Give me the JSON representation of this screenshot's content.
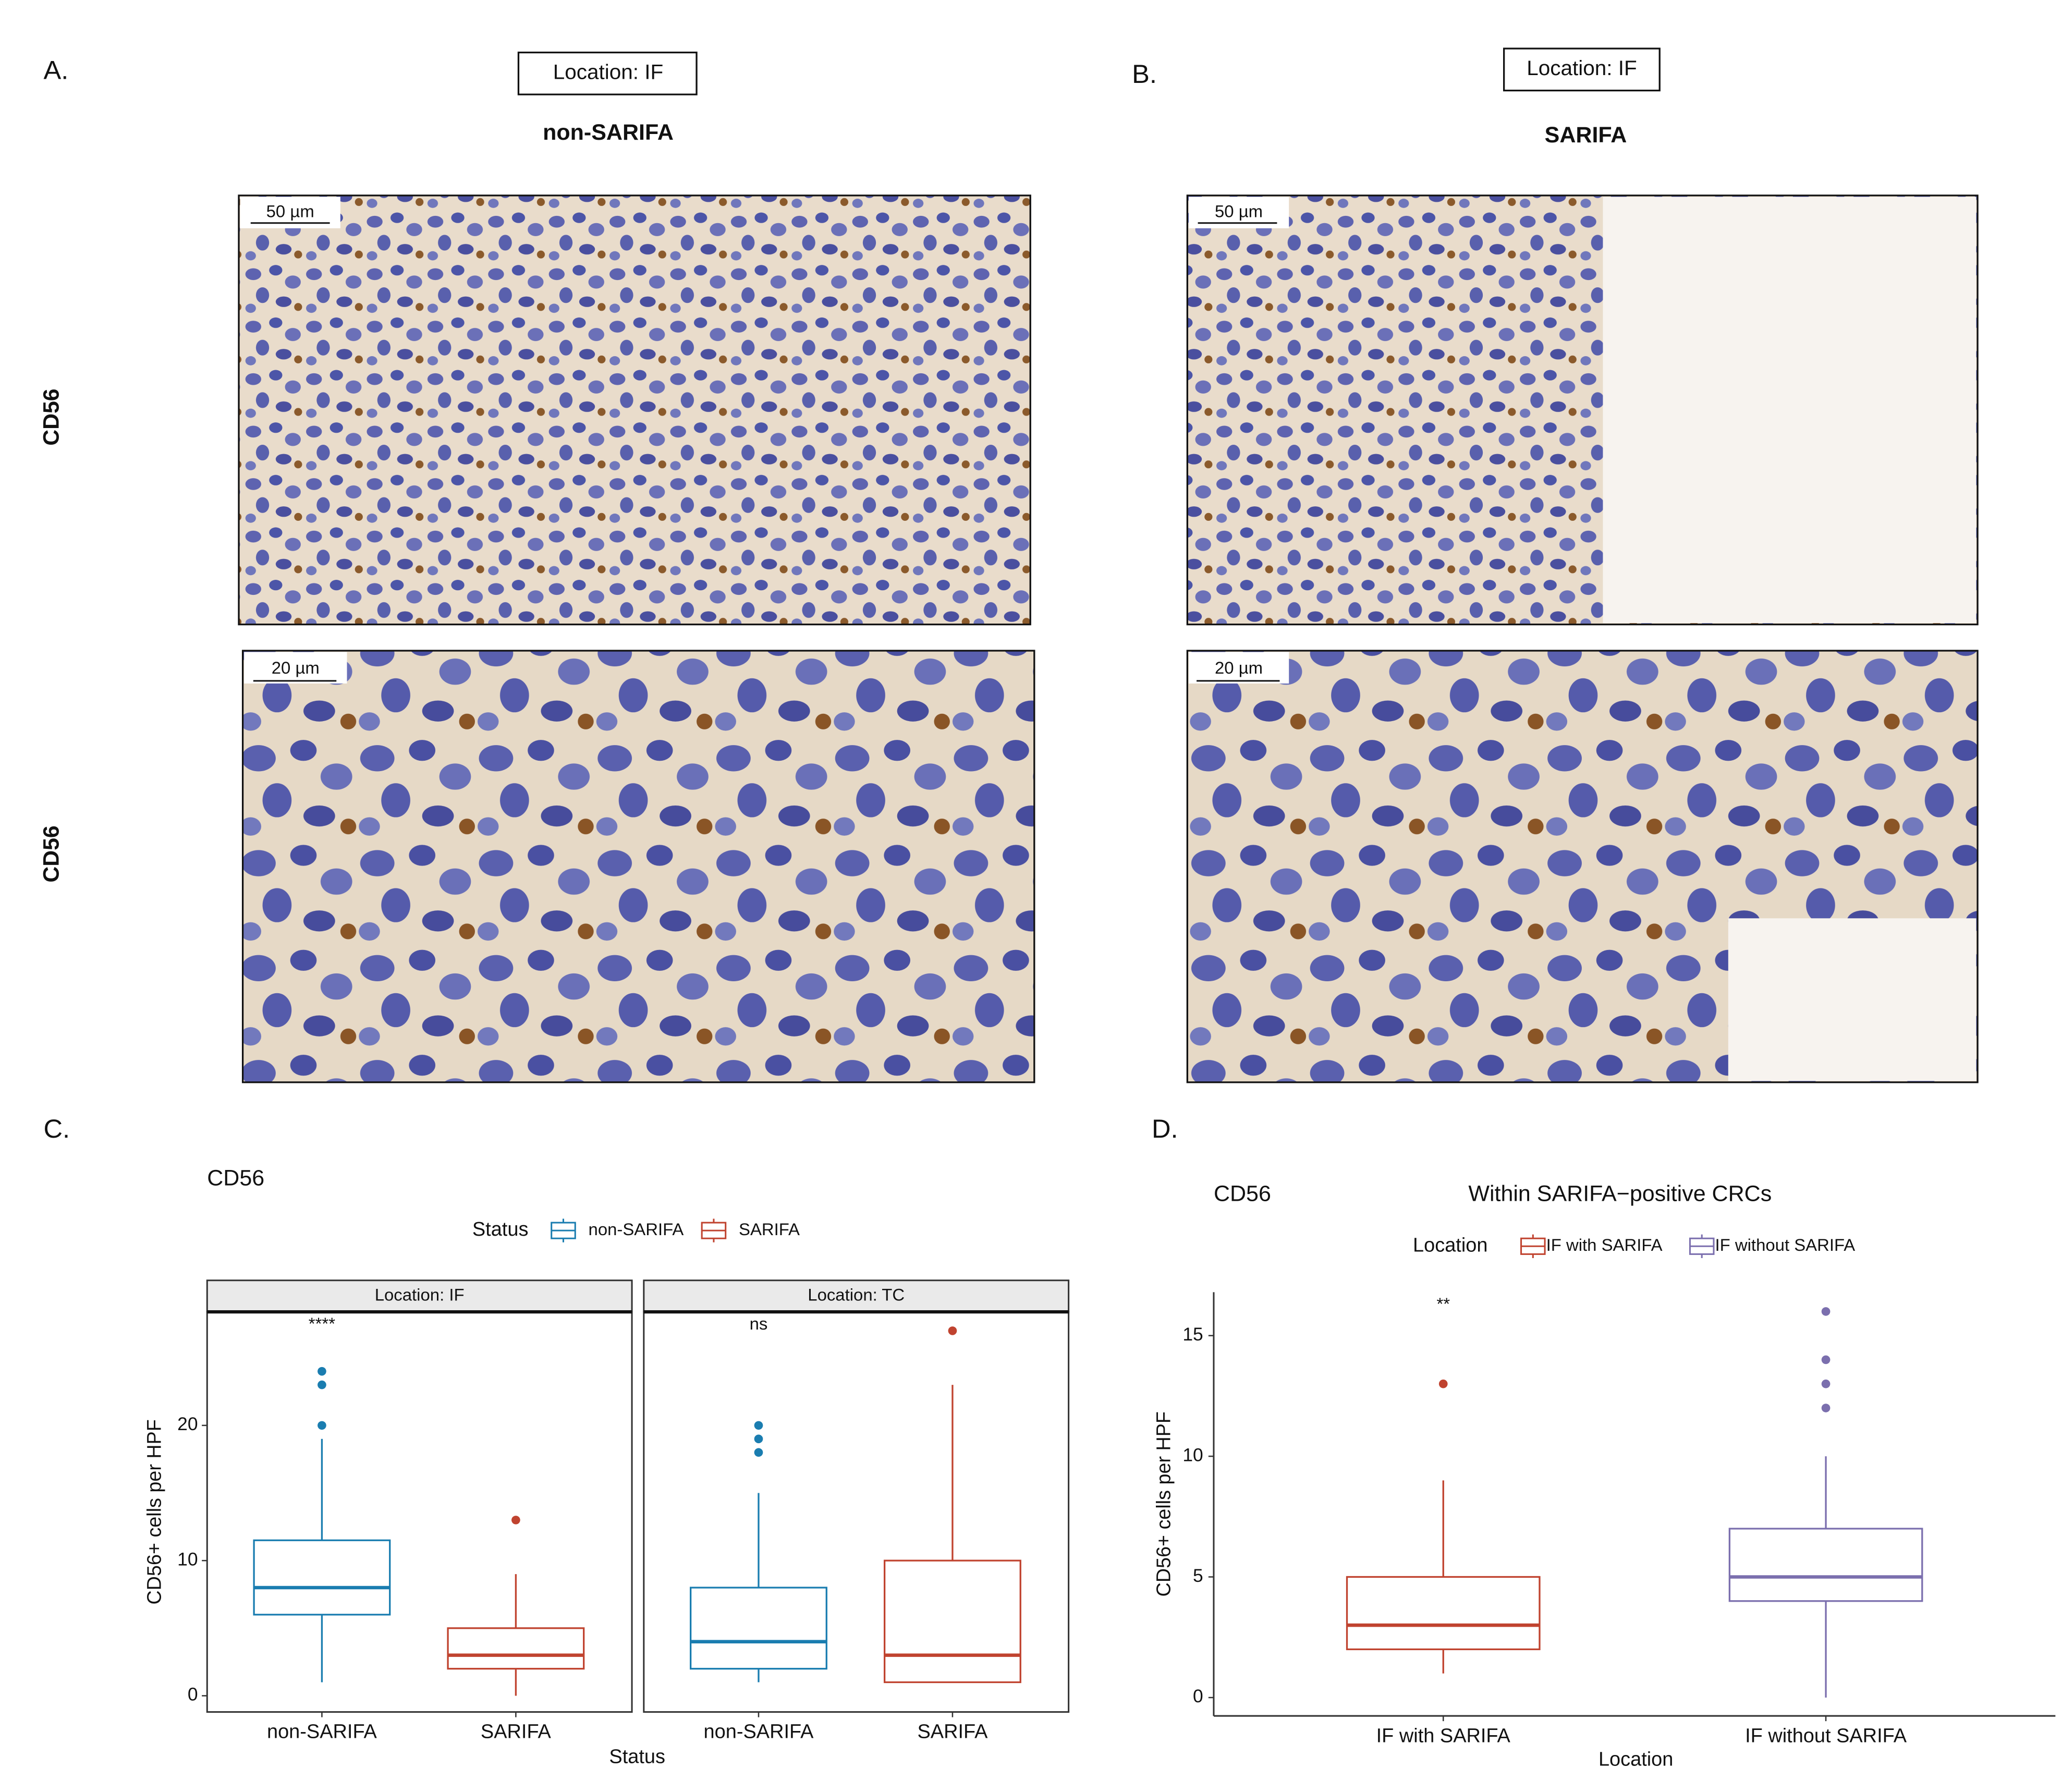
{
  "panels": {
    "a": {
      "label": "A.",
      "location": "Location: IF",
      "title": "non-SARIFA",
      "row_labels": [
        "CD56",
        "CD56"
      ],
      "scale_bars": [
        "50 µm",
        "20 µm"
      ]
    },
    "b": {
      "label": "B.",
      "location": "Location: IF",
      "title": "SARIFA",
      "scale_bars": [
        "50 µm",
        "20 µm"
      ]
    },
    "c": {
      "label": "C."
    },
    "d": {
      "label": "D."
    }
  },
  "chart_data": [
    {
      "type": "box",
      "title": "CD56",
      "legend_title": "Status",
      "x_label": "Status",
      "y_label": "CD56+ cells per HPF",
      "ylim": [
        -1.2,
        28.4
      ],
      "yticks": [
        0,
        10,
        20
      ],
      "series": [
        {
          "name": "non-SARIFA",
          "color": "#1a7db0"
        },
        {
          "name": "SARIFA",
          "color": "#c0432f"
        }
      ],
      "facets": [
        {
          "label": "Location: IF",
          "significance": "****",
          "categories": [
            "non-SARIFA",
            "SARIFA"
          ],
          "boxes": [
            {
              "min": 1,
              "q1": 6,
              "median": 8,
              "q3": 11.5,
              "max": 19,
              "outliers": [
                20,
                23,
                24
              ]
            },
            {
              "min": 0,
              "q1": 2,
              "median": 3,
              "q3": 5,
              "max": 9,
              "outliers": [
                13
              ]
            }
          ]
        },
        {
          "label": "Location: TC",
          "significance": "ns",
          "categories": [
            "non-SARIFA",
            "SARIFA"
          ],
          "boxes": [
            {
              "min": 1,
              "q1": 2,
              "median": 4,
              "q3": 8,
              "max": 15,
              "outliers": [
                18,
                19,
                20
              ]
            },
            {
              "min": 1,
              "q1": 1,
              "median": 3,
              "q3": 10,
              "max": 23,
              "outliers": [
                27
              ]
            }
          ]
        }
      ]
    },
    {
      "type": "box",
      "title": "CD56",
      "subtitle": "Within SARIFA−positive CRCs",
      "legend_title": "Location",
      "x_label": "Location",
      "y_label": "CD56+ cells per HPF",
      "ylim": [
        -0.76,
        16.8
      ],
      "yticks": [
        0,
        5,
        10,
        15
      ],
      "series": [
        {
          "name": "IF with SARIFA",
          "color": "#c0432f"
        },
        {
          "name": "IF without SARIFA",
          "color": "#7b6fae"
        }
      ],
      "facets": [
        {
          "significance": "**",
          "categories": [
            "IF with SARIFA",
            "IF without SARIFA"
          ],
          "boxes": [
            {
              "min": 1,
              "q1": 2,
              "median": 3,
              "q3": 5,
              "max": 9,
              "outliers": [
                13
              ]
            },
            {
              "min": 0,
              "q1": 4,
              "median": 5,
              "q3": 7,
              "max": 10,
              "outliers": [
                12,
                13,
                14,
                16
              ]
            }
          ]
        }
      ]
    }
  ]
}
